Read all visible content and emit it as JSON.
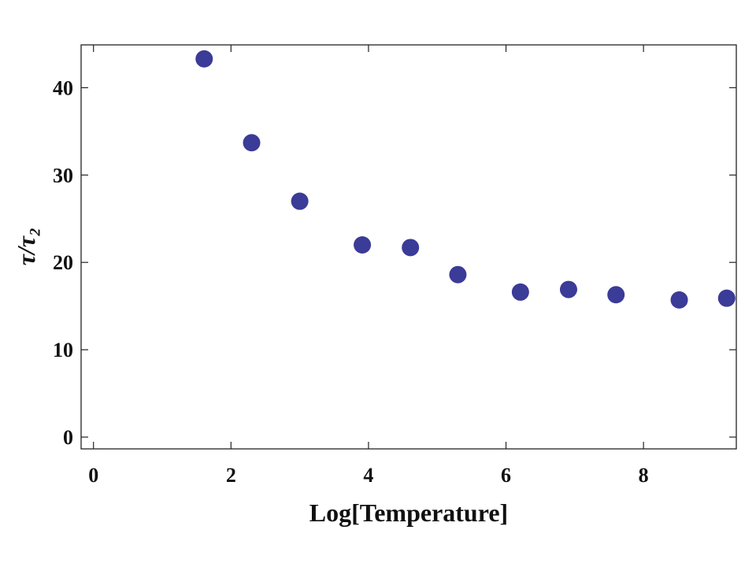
{
  "chart_data": {
    "type": "scatter",
    "x_label": "Log[Temperature]",
    "y_label": "τ/τ₂",
    "x": [
      1.61,
      2.3,
      3.0,
      3.91,
      4.61,
      5.3,
      6.21,
      6.91,
      7.6,
      8.52,
      9.21
    ],
    "values": [
      43.3,
      33.7,
      27.0,
      22.0,
      21.7,
      18.6,
      16.6,
      16.9,
      16.3,
      15.7,
      15.9
    ],
    "color": "#3b3b98",
    "xlim": [
      -0.18,
      9.35
    ],
    "xticks": [
      0,
      2,
      4,
      6,
      8
    ],
    "ylim": [
      -1.35,
      44.9
    ],
    "yticks": [
      0,
      10,
      20,
      30,
      40
    ]
  }
}
